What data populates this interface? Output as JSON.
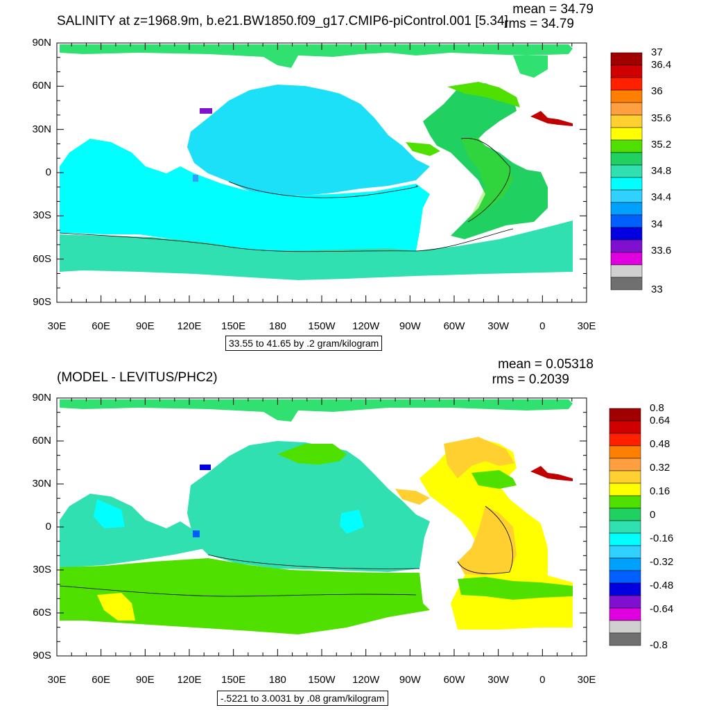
{
  "panels": [
    {
      "title": "SALINITY at z=1968.9m, b.e21.BW1850.f09_g17.CMIP6-piControl.001 [5.34]",
      "mean_label": "mean = 34.79",
      "rms_label": "rms = 34.79",
      "range_label": "33.55 to 41.65 by .2 gram/kilogram",
      "colorbar_labels": [
        "37",
        "36.4",
        "36",
        "35.6",
        "35.2",
        "34.8",
        "34.4",
        "34",
        "33.6",
        "33"
      ],
      "colorbar_colors": [
        "#a00000",
        "#d00000",
        "#ff2000",
        "#ff8000",
        "#ffa040",
        "#ffd030",
        "#ffff00",
        "#50e000",
        "#20d060",
        "#30e0b0",
        "#00ffff",
        "#30d0ff",
        "#00a0ff",
        "#0060ff",
        "#0000e0",
        "#8010d0",
        "#e000e0",
        "#d0d0d0",
        "#707070"
      ]
    },
    {
      "title": "(MODEL - LEVITUS/PHC2)",
      "mean_label": "mean = 0.05318",
      "rms_label": "rms = 0.2039",
      "range_label": "-.5221 to 3.0031 by .08 gram/kilogram",
      "colorbar_labels": [
        "0.8",
        "0.64",
        "0.48",
        "0.32",
        "0.16",
        "0",
        "-0.16",
        "-0.32",
        "-0.48",
        "-0.64",
        "-0.8"
      ],
      "colorbar_colors": [
        "#a00000",
        "#d00000",
        "#ff2000",
        "#ff8000",
        "#ffa040",
        "#ffd030",
        "#ffff00",
        "#50e000",
        "#20d060",
        "#30e0b0",
        "#00ffff",
        "#30d0ff",
        "#00a0ff",
        "#0060ff",
        "#0000e0",
        "#8010d0",
        "#e000e0",
        "#d0d0d0",
        "#707070"
      ]
    }
  ],
  "lat_labels": [
    "90N",
    "60N",
    "30N",
    "0",
    "30S",
    "60S",
    "90S"
  ],
  "lon_labels": [
    "30E",
    "60E",
    "90E",
    "120E",
    "150E",
    "180",
    "150W",
    "120W",
    "90W",
    "60W",
    "30W",
    "0",
    "30E"
  ]
}
